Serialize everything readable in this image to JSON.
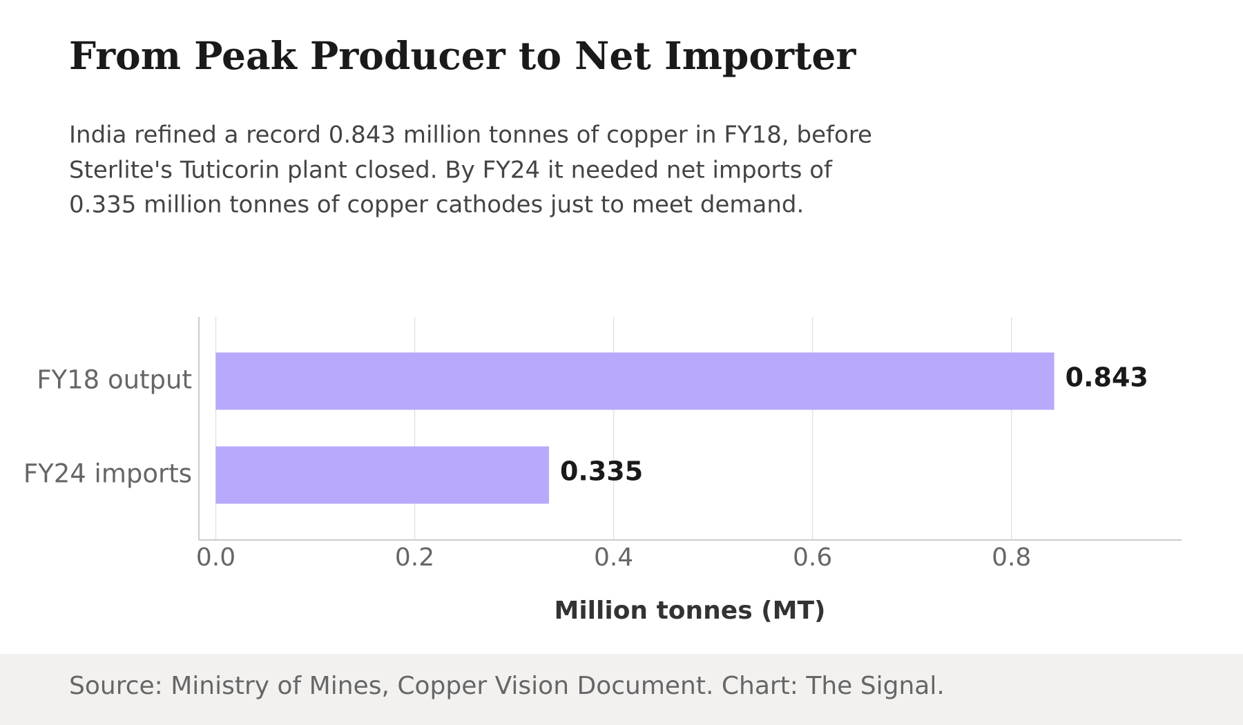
{
  "chart_data": {
    "type": "barh",
    "title": "From Peak Producer to Net Importer",
    "subtitle": [
      "India refined a record 0.843 million tonnes of copper in FY18, before",
      "Sterlite's Tuticorin plant closed. By FY24 it needed net imports of",
      "0.335 million tonnes of copper cathodes just to meet demand."
    ],
    "categories": [
      "FY18 output",
      "FY24 imports"
    ],
    "values": [
      0.843,
      0.335
    ],
    "color": "#b8a9fc",
    "xlim": [
      -0.017,
      0.971
    ],
    "xticks": [
      {
        "value": 0,
        "label": "0.0"
      },
      0.2,
      0.4,
      0.6,
      0.8
    ],
    "xlabel": "Million tonnes (MT)",
    "grid": true,
    "source": "Source: Ministry of Mines, Copper Vision Document. Chart: The Signal."
  }
}
